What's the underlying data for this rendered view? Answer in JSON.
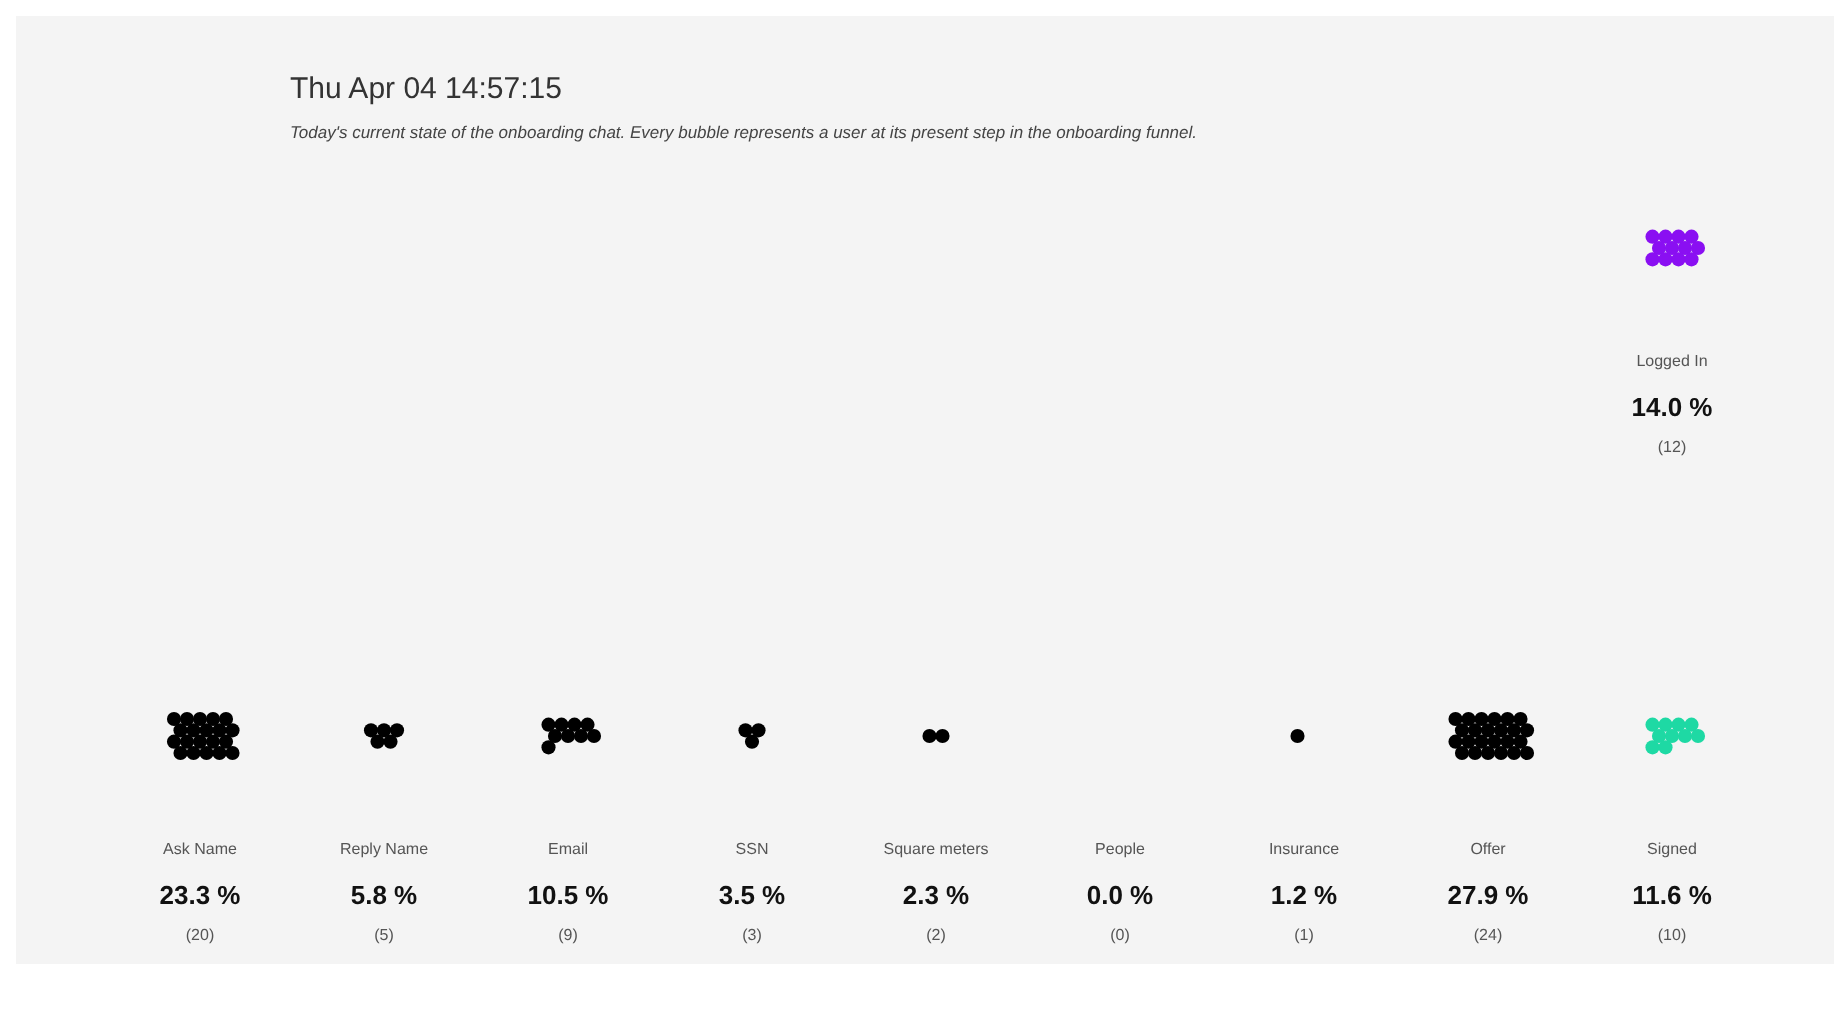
{
  "chart_data": {
    "type": "other",
    "title": "Thu Apr 04 14:57:15",
    "subtitle": "Today's current state of the onboarding chat. Every bubble represents a user at its present step in the onboarding funnel.",
    "categories": [
      "Ask Name",
      "Reply Name",
      "Email",
      "SSN",
      "Square meters",
      "People",
      "Insurance",
      "Offer",
      "Signed",
      "Logged In"
    ],
    "colors": [
      "#000000",
      "#000000",
      "#000000",
      "#000000",
      "#000000",
      "#000000",
      "#000000",
      "#000000",
      "#1ed9a4",
      "#8a0ff2"
    ],
    "series": [
      {
        "values": [
          23.3,
          5.8,
          10.5,
          3.5,
          2.3,
          0.0,
          1.2,
          27.9,
          11.6,
          14.0
        ],
        "value_labels": [
          "23.3 %",
          "5.8 %",
          "10.5 %",
          "3.5 %",
          "2.3 %",
          "0.0 %",
          "1.2 %",
          "27.9 %",
          "11.6 %",
          "14.0 %"
        ]
      },
      {
        "values": [
          20,
          5,
          9,
          3,
          2,
          0,
          1,
          24,
          10,
          12
        ],
        "value_labels": [
          "(20)",
          "(5)",
          "(9)",
          "(3)",
          "(2)",
          "(0)",
          "(1)",
          "(24)",
          "(10)",
          "(12)"
        ]
      }
    ]
  }
}
